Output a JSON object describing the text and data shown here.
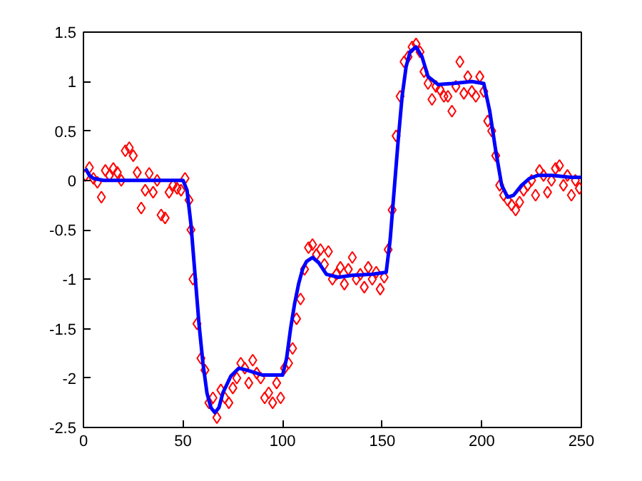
{
  "chart_data": {
    "type": "scatter",
    "xlim": [
      0,
      250
    ],
    "ylim": [
      -2.5,
      1.5
    ],
    "xticks": [
      0,
      50,
      100,
      150,
      200,
      250
    ],
    "yticks": [
      -2.5,
      -2,
      -1.5,
      -1,
      -0.5,
      0,
      0.5,
      1,
      1.5
    ],
    "grid": false,
    "series": [
      {
        "marker": "diamond",
        "color": "#ff0000",
        "x": [
          1,
          3,
          5,
          7,
          9,
          11,
          13,
          15,
          17,
          19,
          21,
          23,
          25,
          27,
          29,
          31,
          33,
          35,
          37,
          39,
          41,
          43,
          45,
          47,
          49,
          51,
          53,
          54,
          55,
          57,
          59,
          61,
          63,
          65,
          67,
          69,
          71,
          73,
          75,
          77,
          79,
          81,
          83,
          85,
          87,
          89,
          91,
          93,
          95,
          97,
          99,
          101,
          103,
          105,
          107,
          109,
          111,
          113,
          115,
          117,
          119,
          121,
          123,
          125,
          127,
          129,
          131,
          133,
          135,
          137,
          139,
          141,
          143,
          145,
          147,
          149,
          151,
          153,
          155,
          157,
          159,
          161,
          163,
          165,
          167,
          169,
          171,
          173,
          175,
          177,
          179,
          181,
          183,
          185,
          187,
          189,
          191,
          193,
          195,
          197,
          199,
          201,
          203,
          205,
          207,
          209,
          211,
          213,
          215,
          217,
          219,
          221,
          223,
          225,
          227,
          229,
          231,
          233,
          235,
          237,
          239,
          241,
          243,
          245,
          247,
          249
        ],
        "values": [
          0.05,
          0.13,
          0.02,
          -0.02,
          -0.17,
          0.1,
          0.05,
          0.12,
          0.08,
          0.0,
          0.3,
          0.33,
          0.25,
          0.08,
          -0.28,
          -0.1,
          0.07,
          -0.12,
          0.0,
          -0.35,
          -0.38,
          -0.12,
          -0.05,
          -0.08,
          -0.1,
          0.02,
          -0.2,
          -0.5,
          -1.0,
          -1.45,
          -1.8,
          -1.92,
          -2.25,
          -2.2,
          -2.4,
          -2.12,
          -2.2,
          -2.25,
          -2.1,
          -2.0,
          -1.85,
          -1.9,
          -2.05,
          -1.82,
          -1.95,
          -2.0,
          -2.2,
          -2.15,
          -2.25,
          -2.05,
          -2.2,
          -1.9,
          -1.85,
          -1.7,
          -1.4,
          -1.2,
          -0.9,
          -0.68,
          -0.65,
          -0.75,
          -0.7,
          -0.85,
          -0.72,
          -1.0,
          -0.95,
          -0.88,
          -1.05,
          -0.9,
          -0.78,
          -1.0,
          -0.95,
          -1.08,
          -0.88,
          -1.0,
          -0.93,
          -1.1,
          -0.98,
          -0.7,
          -0.3,
          0.45,
          0.85,
          1.2,
          1.25,
          1.35,
          1.38,
          1.3,
          1.1,
          0.98,
          0.82,
          0.95,
          0.92,
          0.85,
          0.85,
          0.7,
          0.95,
          1.2,
          0.88,
          1.05,
          0.9,
          0.85,
          1.05,
          0.9,
          0.6,
          0.5,
          0.25,
          -0.05,
          -0.15,
          -0.2,
          -0.25,
          -0.3,
          -0.22,
          -0.1,
          -0.05,
          0.0,
          -0.15,
          0.1,
          0.05,
          -0.12,
          0.0,
          0.12,
          0.15,
          -0.05,
          0.05,
          -0.15,
          0.0,
          -0.08
        ]
      },
      {
        "type": "line",
        "marker": "none",
        "line_style": "solid",
        "color": "#0000ff",
        "x": [
          1,
          3,
          5,
          10,
          20,
          30,
          40,
          50,
          52,
          54,
          56,
          58,
          60,
          62,
          64,
          66,
          68,
          70,
          74,
          78,
          82,
          90,
          100,
          102,
          104,
          106,
          108,
          110,
          112,
          115,
          118,
          122,
          128,
          135,
          145,
          152,
          154,
          156,
          158,
          160,
          162,
          164,
          167,
          170,
          173,
          178,
          185,
          195,
          201,
          204,
          207,
          210,
          213,
          216,
          220,
          224,
          228,
          235,
          245,
          250
        ],
        "values": [
          0.12,
          0.05,
          0.02,
          0.0,
          0.0,
          0.0,
          0.0,
          0.0,
          -0.1,
          -0.45,
          -0.95,
          -1.45,
          -1.85,
          -2.15,
          -2.3,
          -2.35,
          -2.3,
          -2.15,
          -1.98,
          -1.9,
          -1.92,
          -1.97,
          -1.97,
          -1.8,
          -1.5,
          -1.25,
          -1.05,
          -0.9,
          -0.82,
          -0.78,
          -0.83,
          -0.95,
          -0.98,
          -0.96,
          -0.95,
          -0.93,
          -0.6,
          -0.1,
          0.4,
          0.85,
          1.15,
          1.3,
          1.35,
          1.25,
          1.05,
          0.97,
          0.98,
          1.0,
          0.98,
          0.7,
          0.3,
          -0.05,
          -0.17,
          -0.15,
          -0.05,
          0.02,
          0.05,
          0.05,
          0.03,
          0.03
        ]
      }
    ]
  }
}
